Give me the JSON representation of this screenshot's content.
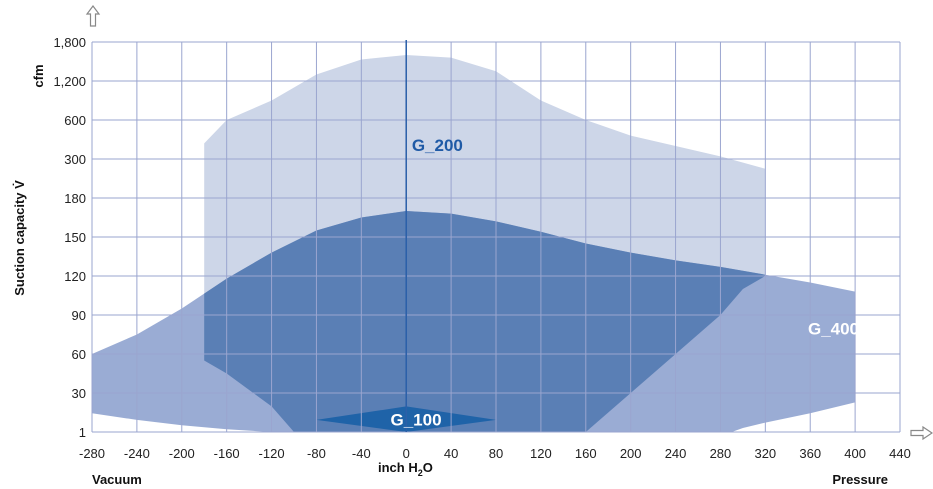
{
  "chart_data": {
    "type": "area",
    "xlabel": "inch H2O",
    "xlabel_main": "inch H",
    "xlabel_sub": "2",
    "xlabel_tail": "O",
    "ylabel": "Suction capacity V̇",
    "yunit": "cfm",
    "left_label": "Vacuum",
    "right_label": "Pressure",
    "x_ticks": [
      "-280",
      "-240",
      "-200",
      "-160",
      "-120",
      "-80",
      "-40",
      "0",
      "40",
      "80",
      "120",
      "160",
      "200",
      "240",
      "280",
      "320",
      "360",
      "400",
      "440"
    ],
    "x_tick_values": [
      -280,
      -240,
      -200,
      -160,
      -120,
      -80,
      -40,
      0,
      40,
      80,
      120,
      160,
      200,
      240,
      280,
      320,
      360,
      400,
      440
    ],
    "y_ticks": [
      "1",
      "30",
      "60",
      "90",
      "120",
      "150",
      "180",
      "300",
      "600",
      "1,200",
      "1,800"
    ],
    "y_scale": "categorical non-linear",
    "xlim": [
      -280,
      440
    ],
    "grid": true,
    "colors": {
      "g200": "#cdd6e8",
      "g400": "#8fa3cf",
      "overlap": "#5a7fb5",
      "g100": "#1f63a8",
      "axis_line": "#2a5fa8",
      "grid": "#9aa5cf"
    },
    "regions": [
      {
        "name": "G_200",
        "points_xy": [
          [
            -180,
            300
          ],
          [
            -180,
            420
          ],
          [
            -160,
            600
          ],
          [
            -120,
            900
          ],
          [
            -80,
            1300
          ],
          [
            -40,
            1530
          ],
          [
            0,
            1600
          ],
          [
            40,
            1560
          ],
          [
            80,
            1350
          ],
          [
            120,
            900
          ],
          [
            160,
            600
          ],
          [
            200,
            480
          ],
          [
            240,
            400
          ],
          [
            280,
            320
          ],
          [
            320,
            270
          ],
          [
            320,
            120
          ],
          [
            300,
            110
          ],
          [
            280,
            90
          ],
          [
            240,
            60
          ],
          [
            200,
            30
          ],
          [
            160,
            1
          ],
          [
            120,
            1
          ],
          [
            80,
            1
          ],
          [
            40,
            1
          ],
          [
            -40,
            1
          ],
          [
            -80,
            1
          ],
          [
            -100,
            1
          ],
          [
            -120,
            20
          ],
          [
            -160,
            45
          ],
          [
            -180,
            55
          ]
        ]
      },
      {
        "name": "G_400",
        "points_xy": [
          [
            -280,
            15
          ],
          [
            -280,
            60
          ],
          [
            -240,
            75
          ],
          [
            -200,
            95
          ],
          [
            -160,
            118
          ],
          [
            -120,
            138
          ],
          [
            -80,
            155
          ],
          [
            -40,
            165
          ],
          [
            0,
            170
          ],
          [
            40,
            168
          ],
          [
            80,
            162
          ],
          [
            120,
            154
          ],
          [
            160,
            145
          ],
          [
            200,
            138
          ],
          [
            240,
            132
          ],
          [
            280,
            127
          ],
          [
            320,
            121
          ],
          [
            360,
            115
          ],
          [
            400,
            108
          ],
          [
            400,
            23
          ],
          [
            360,
            15
          ],
          [
            320,
            8
          ],
          [
            300,
            4
          ],
          [
            290,
            1
          ],
          [
            -120,
            1
          ],
          [
            -160,
            3
          ],
          [
            -200,
            6
          ],
          [
            -240,
            10
          ]
        ]
      },
      {
        "name": "G_100",
        "points_xy": [
          [
            -80,
            10
          ],
          [
            0,
            20
          ],
          [
            80,
            10
          ],
          [
            0,
            1
          ]
        ]
      }
    ]
  }
}
